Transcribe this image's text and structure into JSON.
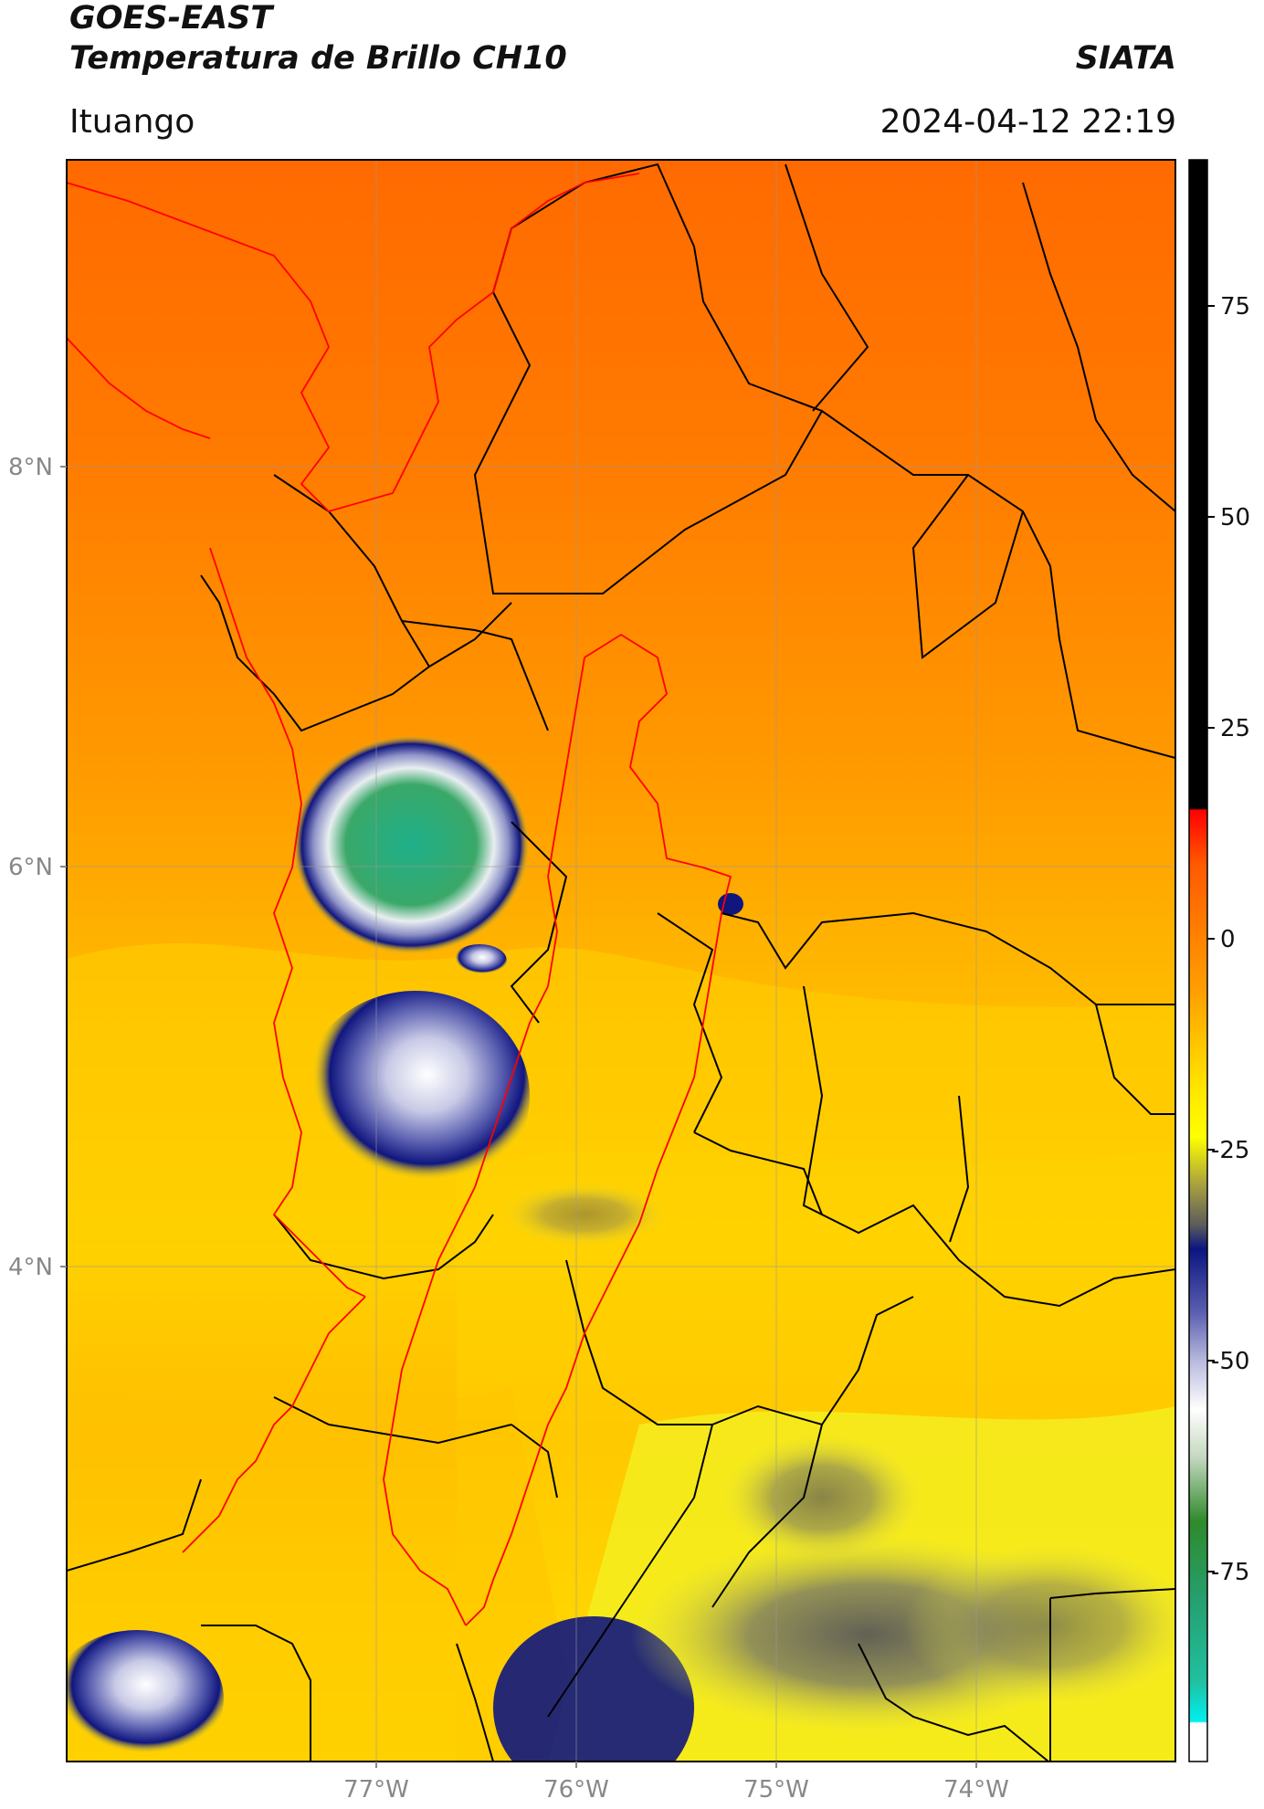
{
  "header": {
    "satellite": "GOES-EAST",
    "product": "Temperatura de Brillo CH10",
    "organization": "SIATA",
    "region": "Ituango",
    "timestamp": "2024-04-12 22:19"
  },
  "axes": {
    "lat_labels": [
      "8°N",
      "6°N",
      "4°N"
    ],
    "lon_labels": [
      "77°W",
      "76°W",
      "75°W",
      "74°W"
    ]
  },
  "colorbar": {
    "tick_labels": [
      "75",
      "50",
      "25",
      "0",
      "-25",
      "-50",
      "-75"
    ],
    "colors": {
      "black": "#000000",
      "red": "#ff0000",
      "orange": "#ff8c00",
      "yellow": "#ffff00",
      "olive": "#6f6a2a",
      "navy": "#0b1580",
      "lavender": "#9a9ccc",
      "white": "#ffffff",
      "green": "#2f8a2b",
      "teal": "#20b28c",
      "cyan": "#00f0f0"
    }
  },
  "map_colors": {
    "border": "#000000",
    "basin": "#ff0000",
    "grid": "#999999"
  }
}
